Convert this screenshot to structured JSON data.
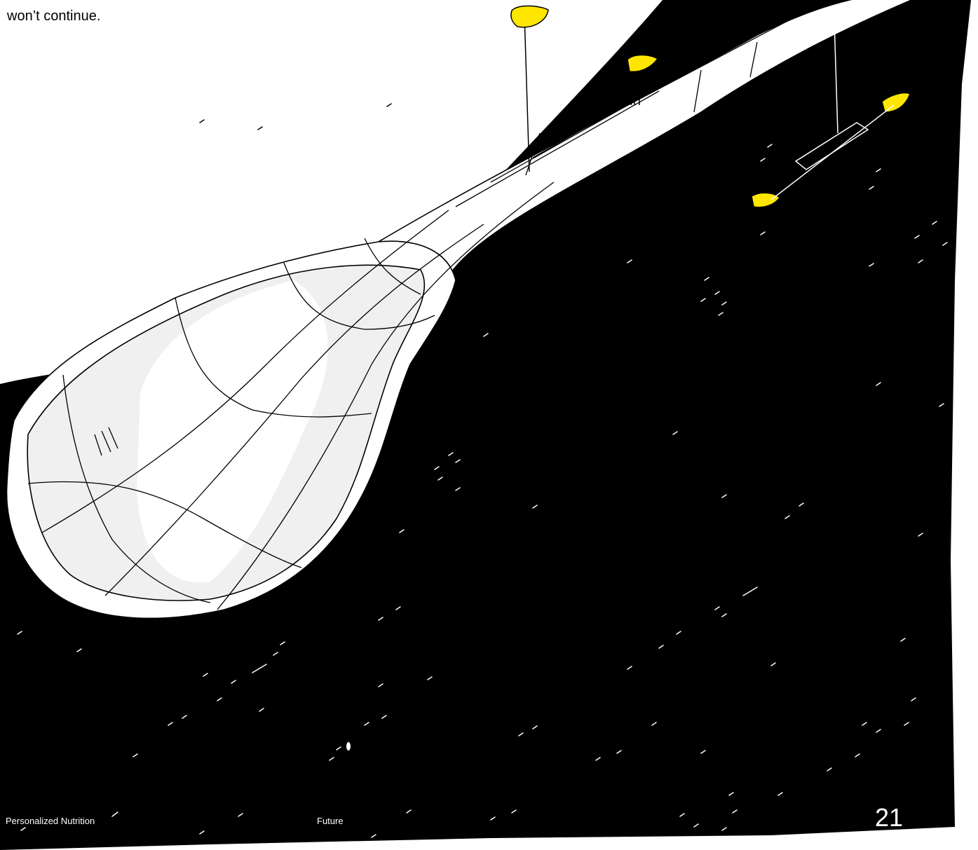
{
  "body": {
    "text": "won’t continue."
  },
  "footer": {
    "left": "Personalized Nutrition",
    "center": "Future",
    "page_number": "21"
  }
}
